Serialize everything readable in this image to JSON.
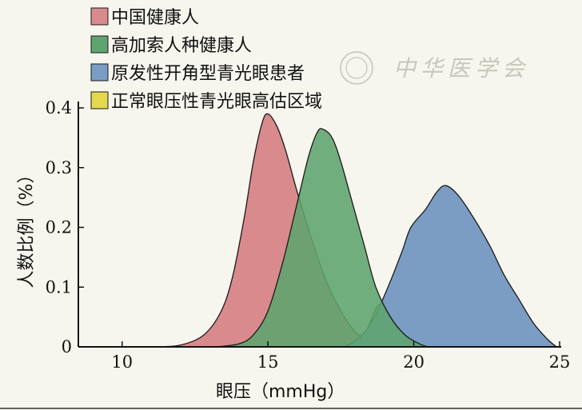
{
  "chart_data": {
    "type": "area",
    "xlabel": "眼压（mmHg）",
    "ylabel": "人数比例（%）",
    "xlim": [
      8.5,
      25
    ],
    "ylim": [
      0,
      0.4
    ],
    "x_ticks": [
      10,
      15,
      20,
      25
    ],
    "y_ticks": [
      0,
      0.1,
      0.2,
      0.3,
      0.4
    ],
    "y_tick_labels": [
      "0",
      "0.1",
      "0.2",
      "0.3",
      "0.4"
    ],
    "legend_position": "top-left",
    "grid": false,
    "series": [
      {
        "name": "中国健康人",
        "color": "#d88a8c",
        "points": [
          [
            11.2,
            0
          ],
          [
            12.0,
            0.003
          ],
          [
            12.8,
            0.02
          ],
          [
            13.4,
            0.06
          ],
          [
            13.8,
            0.12
          ],
          [
            14.2,
            0.22
          ],
          [
            14.5,
            0.31
          ],
          [
            14.8,
            0.375
          ],
          [
            15.0,
            0.39
          ],
          [
            15.3,
            0.37
          ],
          [
            15.6,
            0.33
          ],
          [
            16.0,
            0.26
          ],
          [
            16.5,
            0.18
          ],
          [
            17.0,
            0.11
          ],
          [
            17.5,
            0.06
          ],
          [
            18.0,
            0.025
          ],
          [
            18.5,
            0.01
          ],
          [
            19.0,
            0.002
          ],
          [
            19.5,
            0
          ]
        ]
      },
      {
        "name": "高加索人种健康人",
        "color": "#5fa46e",
        "points": [
          [
            13.2,
            0
          ],
          [
            14.0,
            0.005
          ],
          [
            14.5,
            0.02
          ],
          [
            15.0,
            0.06
          ],
          [
            15.5,
            0.14
          ],
          [
            16.0,
            0.24
          ],
          [
            16.4,
            0.32
          ],
          [
            16.7,
            0.36
          ],
          [
            16.9,
            0.364
          ],
          [
            17.2,
            0.35
          ],
          [
            17.5,
            0.31
          ],
          [
            17.9,
            0.24
          ],
          [
            18.3,
            0.17
          ],
          [
            18.7,
            0.1
          ],
          [
            19.2,
            0.05
          ],
          [
            19.7,
            0.02
          ],
          [
            20.2,
            0.005
          ],
          [
            20.5,
            0
          ]
        ]
      },
      {
        "name": "原发性开角型青光眼患者",
        "color": "#7b9dc4",
        "points": [
          [
            17.6,
            0
          ],
          [
            18.0,
            0.01
          ],
          [
            18.4,
            0.03
          ],
          [
            18.8,
            0.065
          ],
          [
            19.2,
            0.11
          ],
          [
            19.6,
            0.16
          ],
          [
            19.9,
            0.2
          ],
          [
            20.4,
            0.23
          ],
          [
            20.8,
            0.26
          ],
          [
            21.1,
            0.27
          ],
          [
            21.5,
            0.255
          ],
          [
            22.0,
            0.22
          ],
          [
            22.6,
            0.17
          ],
          [
            23.1,
            0.12
          ],
          [
            23.6,
            0.08
          ],
          [
            24.1,
            0.04
          ],
          [
            24.6,
            0.012
          ],
          [
            24.9,
            0
          ]
        ]
      },
      {
        "name": "正常眼压性青光眼高估区域",
        "color": "#e4d94c",
        "points": [
          [
            17.7,
            0
          ],
          [
            18.0,
            0.01
          ],
          [
            18.4,
            0.03
          ],
          [
            18.8,
            0.07
          ],
          [
            19.2,
            0.05
          ],
          [
            19.7,
            0.02
          ],
          [
            20.2,
            0.005
          ],
          [
            20.5,
            0
          ]
        ]
      }
    ]
  },
  "watermark": {
    "text": "中华医学会"
  }
}
